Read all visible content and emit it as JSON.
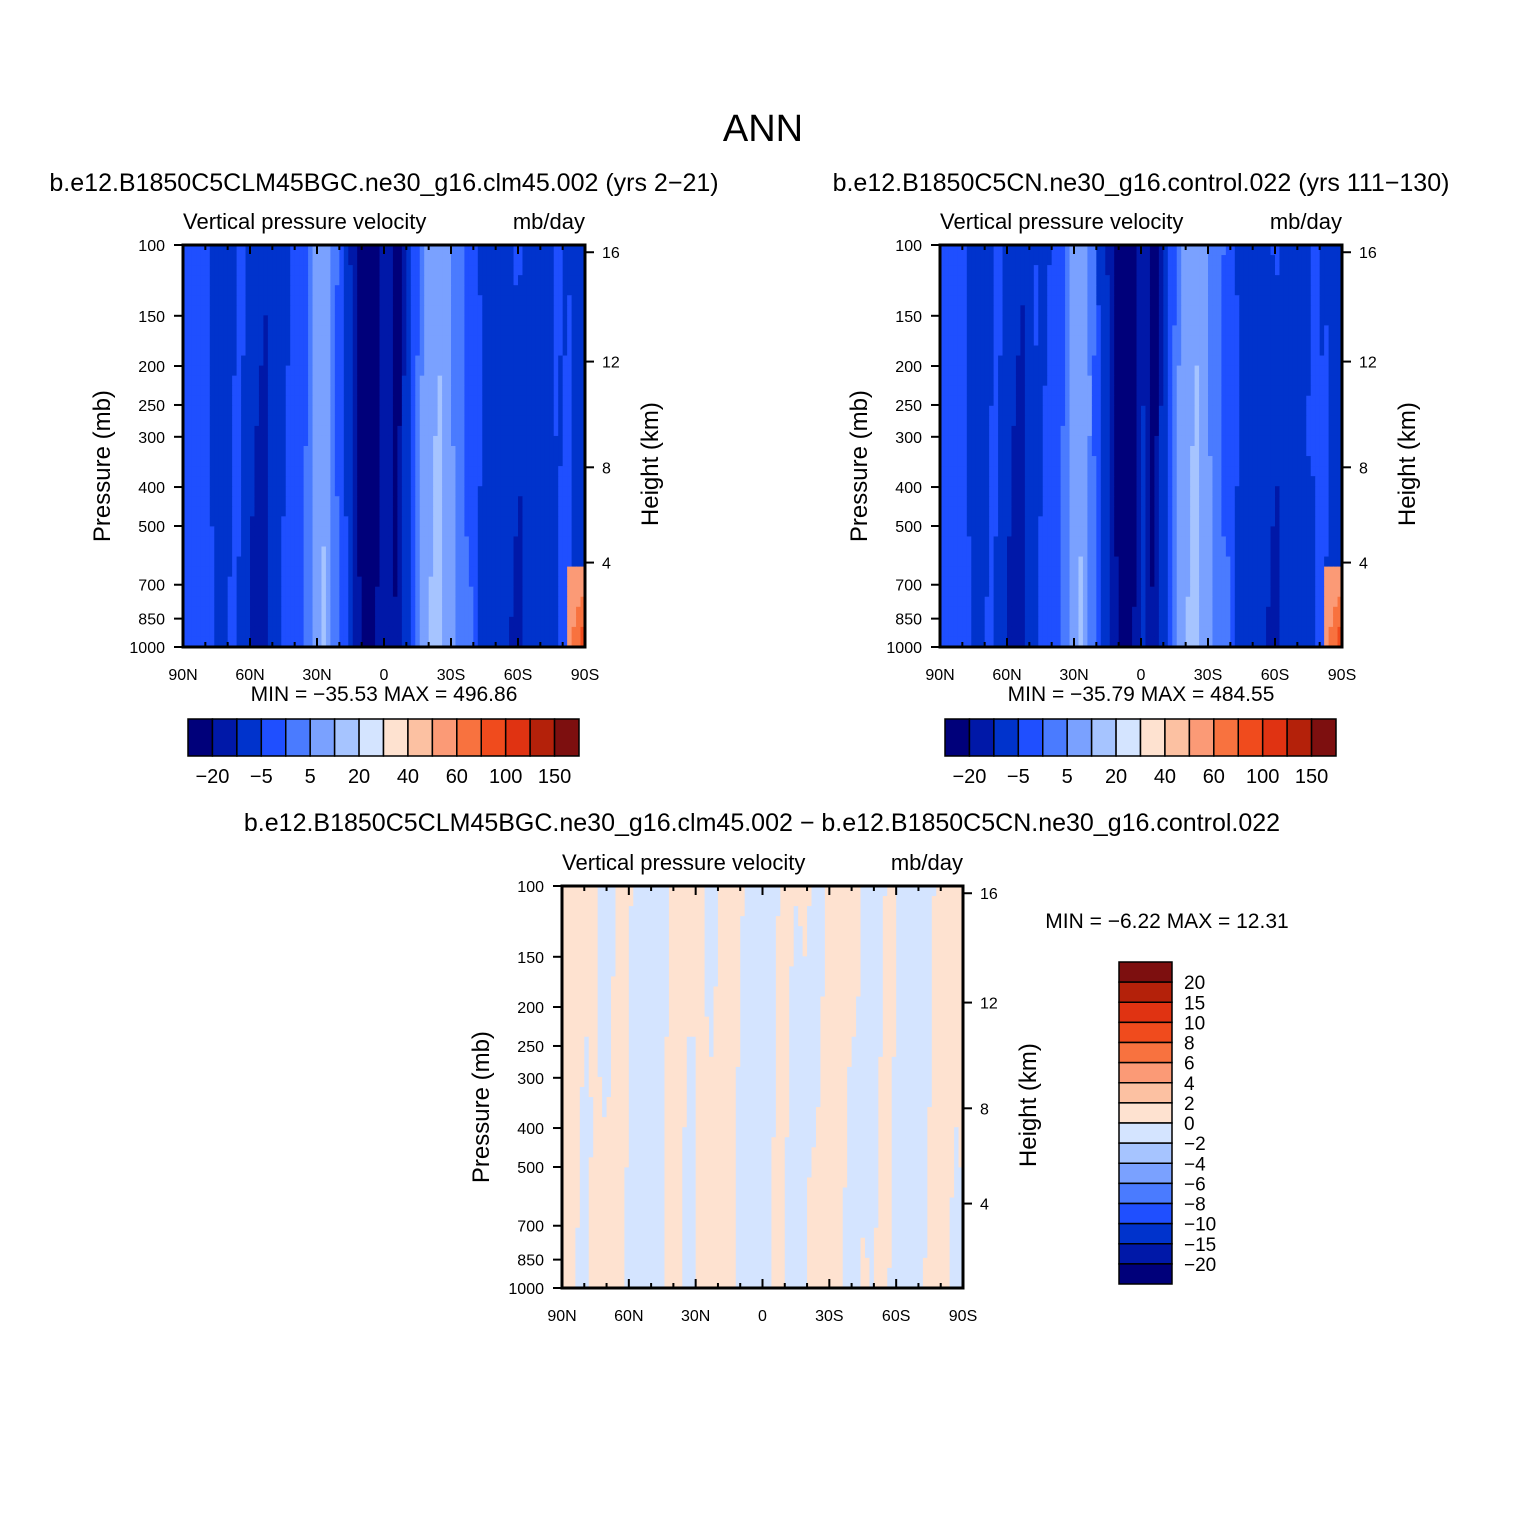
{
  "page": {
    "title": "ANN"
  },
  "colorbars": {
    "field": {
      "colors": [
        "#00007a",
        "#0018a8",
        "#0033cc",
        "#1f4fff",
        "#4a7bff",
        "#7aa1ff",
        "#a6c4ff",
        "#d4e4ff",
        "#fee2d0",
        "#fcc1a2",
        "#fb9a76",
        "#f8723f",
        "#f04b1d",
        "#e03312",
        "#b4210a",
        "#7d0f0f"
      ],
      "labels": [
        "-20",
        "-5",
        "5",
        "20",
        "40",
        "60",
        "100",
        "150"
      ]
    },
    "diff": {
      "colors": [
        "#00007a",
        "#0018a8",
        "#0033cc",
        "#1f4fff",
        "#4a7bff",
        "#7aa1ff",
        "#a6c4ff",
        "#d4e4ff",
        "#fee2d0",
        "#fcc1a2",
        "#fb9a76",
        "#f8723f",
        "#f04b1d",
        "#e03312",
        "#b4210a",
        "#7d0f0f"
      ],
      "labels": [
        "20",
        "15",
        "10",
        "8",
        "6",
        "4",
        "2",
        "0",
        "−2",
        "−4",
        "−6",
        "−8",
        "−10",
        "−15",
        "−20"
      ]
    }
  },
  "axes": {
    "y_label": "Pressure (mb)",
    "y_right_label": "Height (km)",
    "pressure_ticks": [
      100,
      150,
      200,
      250,
      300,
      400,
      500,
      700,
      850,
      1000
    ],
    "height_ticks": [
      16,
      12,
      8,
      4
    ],
    "lat_labels": [
      "90N",
      "60N",
      "30N",
      "0",
      "30S",
      "60S",
      "90S"
    ]
  },
  "chart_data": [
    {
      "type": "heatmap",
      "title": "b.e12.B1850C5CLM45BGC.ne30_g16.clm45.002 (yrs 2−21)",
      "subtitle_left": "Vertical pressure velocity",
      "subtitle_right": "mb/day",
      "stats": "MIN = −35.53   MAX = 496.86",
      "min": -35.53,
      "max": 496.86,
      "x_range": [
        "90N",
        "90S"
      ],
      "y_range_mb": [
        1000,
        100
      ],
      "y_scale": "log",
      "ylabel": "Pressure (mb)",
      "ylabel_right": "Height (km)",
      "colorbar": "field"
    },
    {
      "type": "heatmap",
      "title": "b.e12.B1850C5CN.ne30_g16.control.022 (yrs 111−130)",
      "subtitle_left": "Vertical pressure velocity",
      "subtitle_right": "mb/day",
      "stats": "MIN = −35.79   MAX = 484.55",
      "min": -35.79,
      "max": 484.55,
      "x_range": [
        "90N",
        "90S"
      ],
      "y_range_mb": [
        1000,
        100
      ],
      "y_scale": "log",
      "ylabel": "Pressure (mb)",
      "ylabel_right": "Height (km)",
      "colorbar": "field"
    },
    {
      "type": "heatmap",
      "title": "b.e12.B1850C5CLM45BGC.ne30_g16.clm45.002 − b.e12.B1850C5CN.ne30_g16.control.022",
      "subtitle_left": "Vertical pressure velocity",
      "subtitle_right": "mb/day",
      "stats": "MIN =    −6.22   MAX =    12.31",
      "min": -6.22,
      "max": 12.31,
      "x_range": [
        "90N",
        "90S"
      ],
      "y_range_mb": [
        1000,
        100
      ],
      "y_scale": "log",
      "ylabel": "Pressure (mb)",
      "ylabel_right": "Height (km)",
      "colorbar": "diff"
    }
  ]
}
